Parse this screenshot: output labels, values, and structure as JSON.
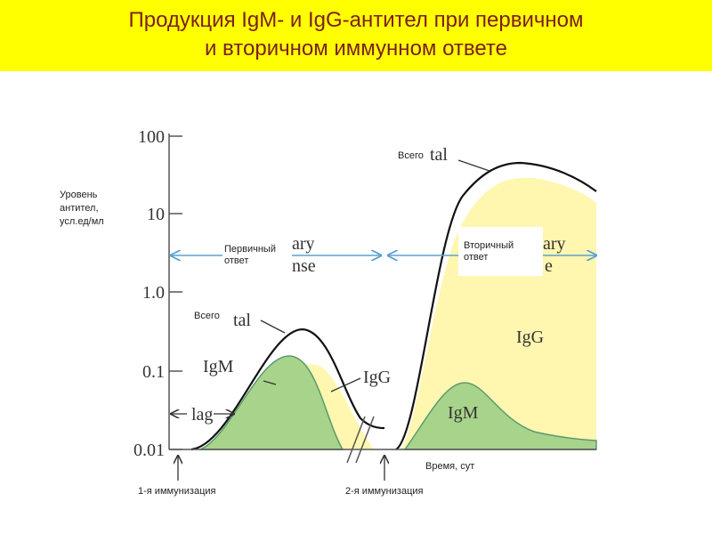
{
  "header": {
    "title": "Продукция IgM- и IgG-антител при первичном и вторичном иммунном ответе"
  },
  "axis": {
    "y_label": "Уровень антител, усл.ед/мл",
    "y_ticks": [
      "100",
      "10",
      "1.0",
      "0.1",
      "0.01"
    ],
    "x_label": "Время, сут"
  },
  "primary": {
    "label": "Первичный ответ",
    "total": "Всего",
    "total_fragment": "tal",
    "fragment_1": "ary",
    "fragment_2": "nse",
    "igm": "IgM",
    "igg": "IgG",
    "lag": "lag",
    "immunization": "1-я иммунизация"
  },
  "secondary": {
    "label": "Вторичный ответ",
    "total": "Всего",
    "total_fragment": "tal",
    "fragment_1": "ary",
    "fragment_2": "e",
    "igm": "IgM",
    "igg": "IgG",
    "immunization": "2-я иммунизация"
  }
}
